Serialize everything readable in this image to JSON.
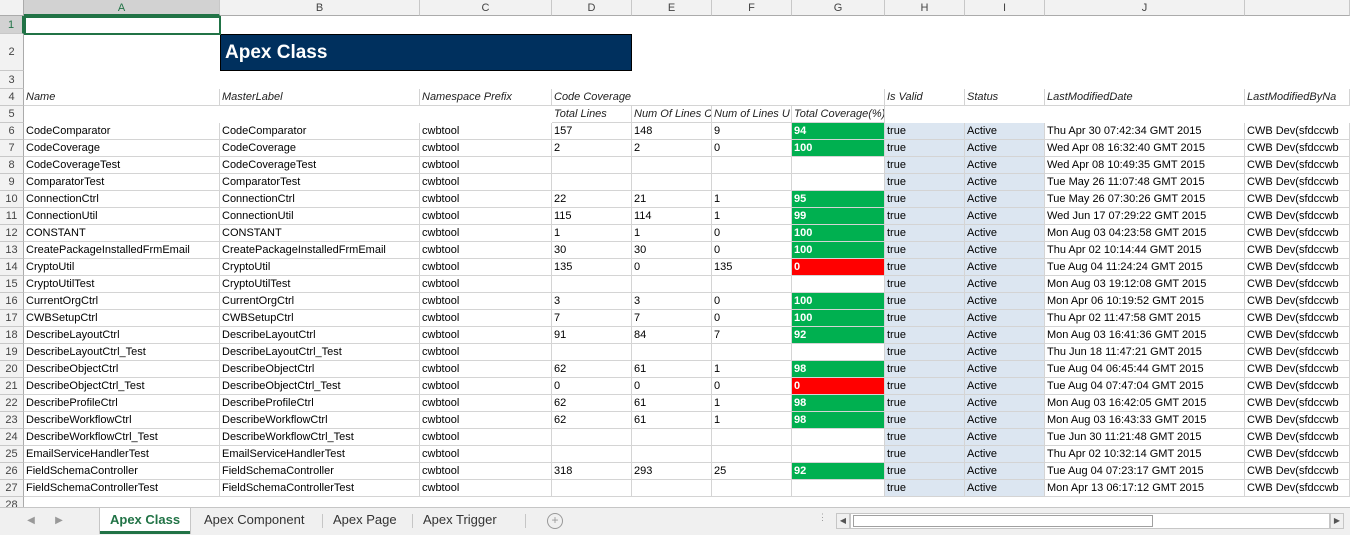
{
  "columns": [
    "A",
    "B",
    "C",
    "D",
    "E",
    "F",
    "G",
    "H",
    "I",
    "J"
  ],
  "row_numbers": [
    "1",
    "2",
    "3",
    "4",
    "5",
    "6",
    "7",
    "8",
    "9",
    "10",
    "11",
    "12",
    "13",
    "14",
    "15",
    "16",
    "17",
    "18",
    "19",
    "20",
    "21",
    "22",
    "23",
    "24",
    "25",
    "26",
    "27",
    "28"
  ],
  "title": "Apex Class",
  "header": {
    "name": "Name",
    "master_label": "MasterLabel",
    "namespace_prefix": "Namespace Prefix",
    "code_coverage": "Code Coverage",
    "is_valid": "Is Valid",
    "status": "Status",
    "last_modified_date": "LastModifiedDate",
    "last_modified_by": "LastModifiedByNa"
  },
  "subheader": {
    "total_lines": "Total Lines",
    "num_lines_covered": "Num Of Lines C",
    "num_lines_uncovered": "Num of Lines U",
    "total_coverage": "Total Coverage(%)"
  },
  "rows": [
    {
      "name": "CodeComparator",
      "label": "CodeComparator",
      "ns": "cwbtool",
      "total": "157",
      "covered": "148",
      "uncovered": "9",
      "coverage": "94",
      "cov_status": "green",
      "valid": "true",
      "status": "Active",
      "modified": "Thu Apr 30 07:42:34 GMT 2015",
      "by": "CWB Dev(sfdccwb"
    },
    {
      "name": "CodeCoverage",
      "label": "CodeCoverage",
      "ns": "cwbtool",
      "total": "2",
      "covered": "2",
      "uncovered": "0",
      "coverage": "100",
      "cov_status": "green",
      "valid": "true",
      "status": "Active",
      "modified": "Wed Apr 08 16:32:40 GMT 2015",
      "by": "CWB Dev(sfdccwb"
    },
    {
      "name": "CodeCoverageTest",
      "label": "CodeCoverageTest",
      "ns": "cwbtool",
      "total": "",
      "covered": "",
      "uncovered": "",
      "coverage": "",
      "cov_status": "none",
      "valid": "true",
      "status": "Active",
      "modified": "Wed Apr 08 10:49:35 GMT 2015",
      "by": "CWB Dev(sfdccwb"
    },
    {
      "name": "ComparatorTest",
      "label": "ComparatorTest",
      "ns": "cwbtool",
      "total": "",
      "covered": "",
      "uncovered": "",
      "coverage": "",
      "cov_status": "none",
      "valid": "true",
      "status": "Active",
      "modified": "Tue May 26 11:07:48 GMT 2015",
      "by": "CWB Dev(sfdccwb"
    },
    {
      "name": "ConnectionCtrl",
      "label": "ConnectionCtrl",
      "ns": "cwbtool",
      "total": "22",
      "covered": "21",
      "uncovered": "1",
      "coverage": "95",
      "cov_status": "green",
      "valid": "true",
      "status": "Active",
      "modified": "Tue May 26 07:30:26 GMT 2015",
      "by": "CWB Dev(sfdccwb"
    },
    {
      "name": "ConnectionUtil",
      "label": "ConnectionUtil",
      "ns": "cwbtool",
      "total": "115",
      "covered": "114",
      "uncovered": "1",
      "coverage": "99",
      "cov_status": "green",
      "valid": "true",
      "status": "Active",
      "modified": "Wed Jun 17 07:29:22 GMT 2015",
      "by": "CWB Dev(sfdccwb"
    },
    {
      "name": "CONSTANT",
      "label": "CONSTANT",
      "ns": "cwbtool",
      "total": "1",
      "covered": "1",
      "uncovered": "0",
      "coverage": "100",
      "cov_status": "green",
      "valid": "true",
      "status": "Active",
      "modified": "Mon Aug 03 04:23:58 GMT 2015",
      "by": "CWB Dev(sfdccwb"
    },
    {
      "name": "CreatePackageInstalledFrmEmail",
      "label": "CreatePackageInstalledFrmEmail",
      "ns": "cwbtool",
      "total": "30",
      "covered": "30",
      "uncovered": "0",
      "coverage": "100",
      "cov_status": "green",
      "valid": "true",
      "status": "Active",
      "modified": "Thu Apr 02 10:14:44 GMT 2015",
      "by": "CWB Dev(sfdccwb"
    },
    {
      "name": "CryptoUtil",
      "label": "CryptoUtil",
      "ns": "cwbtool",
      "total": "135",
      "covered": "0",
      "uncovered": "135",
      "coverage": "0",
      "cov_status": "red",
      "valid": "true",
      "status": "Active",
      "modified": "Tue Aug 04 11:24:24 GMT 2015",
      "by": "CWB Dev(sfdccwb"
    },
    {
      "name": "CryptoUtilTest",
      "label": "CryptoUtilTest",
      "ns": "cwbtool",
      "total": "",
      "covered": "",
      "uncovered": "",
      "coverage": "",
      "cov_status": "none",
      "valid": "true",
      "status": "Active",
      "modified": "Mon Aug 03 19:12:08 GMT 2015",
      "by": "CWB Dev(sfdccwb"
    },
    {
      "name": "CurrentOrgCtrl",
      "label": "CurrentOrgCtrl",
      "ns": "cwbtool",
      "total": "3",
      "covered": "3",
      "uncovered": "0",
      "coverage": "100",
      "cov_status": "green",
      "valid": "true",
      "status": "Active",
      "modified": "Mon Apr 06 10:19:52 GMT 2015",
      "by": "CWB Dev(sfdccwb"
    },
    {
      "name": "CWBSetupCtrl",
      "label": "CWBSetupCtrl",
      "ns": "cwbtool",
      "total": "7",
      "covered": "7",
      "uncovered": "0",
      "coverage": "100",
      "cov_status": "green",
      "valid": "true",
      "status": "Active",
      "modified": "Thu Apr 02 11:47:58 GMT 2015",
      "by": "CWB Dev(sfdccwb"
    },
    {
      "name": "DescribeLayoutCtrl",
      "label": "DescribeLayoutCtrl",
      "ns": "cwbtool",
      "total": "91",
      "covered": "84",
      "uncovered": "7",
      "coverage": "92",
      "cov_status": "green",
      "valid": "true",
      "status": "Active",
      "modified": "Mon Aug 03 16:41:36 GMT 2015",
      "by": "CWB Dev(sfdccwb"
    },
    {
      "name": "DescribeLayoutCtrl_Test",
      "label": "DescribeLayoutCtrl_Test",
      "ns": "cwbtool",
      "total": "",
      "covered": "",
      "uncovered": "",
      "coverage": "",
      "cov_status": "none",
      "valid": "true",
      "status": "Active",
      "modified": "Thu Jun 18 11:47:21 GMT 2015",
      "by": "CWB Dev(sfdccwb"
    },
    {
      "name": "DescribeObjectCtrl",
      "label": "DescribeObjectCtrl",
      "ns": "cwbtool",
      "total": "62",
      "covered": "61",
      "uncovered": "1",
      "coverage": "98",
      "cov_status": "green",
      "valid": "true",
      "status": "Active",
      "modified": "Tue Aug 04 06:45:44 GMT 2015",
      "by": "CWB Dev(sfdccwb"
    },
    {
      "name": "DescribeObjectCtrl_Test",
      "label": "DescribeObjectCtrl_Test",
      "ns": "cwbtool",
      "total": "0",
      "covered": "0",
      "uncovered": "0",
      "coverage": "0",
      "cov_status": "red",
      "valid": "true",
      "status": "Active",
      "modified": "Tue Aug 04 07:47:04 GMT 2015",
      "by": "CWB Dev(sfdccwb"
    },
    {
      "name": "DescribeProfileCtrl",
      "label": "DescribeProfileCtrl",
      "ns": "cwbtool",
      "total": "62",
      "covered": "61",
      "uncovered": "1",
      "coverage": "98",
      "cov_status": "green",
      "valid": "true",
      "status": "Active",
      "modified": "Mon Aug 03 16:42:05 GMT 2015",
      "by": "CWB Dev(sfdccwb"
    },
    {
      "name": "DescribeWorkflowCtrl",
      "label": "DescribeWorkflowCtrl",
      "ns": "cwbtool",
      "total": "62",
      "covered": "61",
      "uncovered": "1",
      "coverage": "98",
      "cov_status": "green",
      "valid": "true",
      "status": "Active",
      "modified": "Mon Aug 03 16:43:33 GMT 2015",
      "by": "CWB Dev(sfdccwb"
    },
    {
      "name": "DescribeWorkflowCtrl_Test",
      "label": "DescribeWorkflowCtrl_Test",
      "ns": "cwbtool",
      "total": "",
      "covered": "",
      "uncovered": "",
      "coverage": "",
      "cov_status": "none",
      "valid": "true",
      "status": "Active",
      "modified": "Tue Jun 30 11:21:48 GMT 2015",
      "by": "CWB Dev(sfdccwb"
    },
    {
      "name": "EmailServiceHandlerTest",
      "label": "EmailServiceHandlerTest",
      "ns": "cwbtool",
      "total": "",
      "covered": "",
      "uncovered": "",
      "coverage": "",
      "cov_status": "none",
      "valid": "true",
      "status": "Active",
      "modified": "Thu Apr 02 10:32:14 GMT 2015",
      "by": "CWB Dev(sfdccwb"
    },
    {
      "name": "FieldSchemaController",
      "label": "FieldSchemaController",
      "ns": "cwbtool",
      "total": "318",
      "covered": "293",
      "uncovered": "25",
      "coverage": "92",
      "cov_status": "green",
      "valid": "true",
      "status": "Active",
      "modified": "Tue Aug 04 07:23:17 GMT 2015",
      "by": "CWB Dev(sfdccwb"
    },
    {
      "name": "FieldSchemaControllerTest",
      "label": "FieldSchemaControllerTest",
      "ns": "cwbtool",
      "total": "",
      "covered": "",
      "uncovered": "",
      "coverage": "",
      "cov_status": "none",
      "valid": "true",
      "status": "Active",
      "modified": "Mon Apr 13 06:17:12 GMT 2015",
      "by": "CWB Dev(sfdccwb"
    }
  ],
  "sheet_tabs": [
    "Apex Class",
    "Apex Component",
    "Apex Page",
    "Apex Trigger"
  ],
  "active_tab": 0,
  "colors": {
    "accent": "#217346",
    "title_bg": "#00305e",
    "good": "#00b050",
    "bad": "#ff0000",
    "band": "#dce6f1"
  },
  "icons": {
    "prev_sheet": "triangle-left-icon",
    "next_sheet": "triangle-right-icon",
    "add_sheet": "plus-circle-icon"
  }
}
